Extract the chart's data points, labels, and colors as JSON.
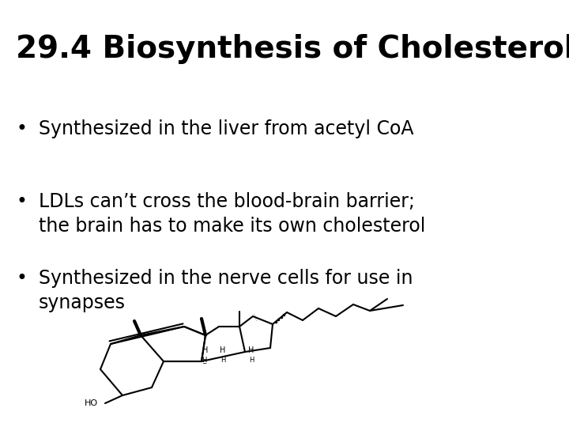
{
  "title": "29.4 Biosynthesis of Cholesterol",
  "title_fontsize": 28,
  "background_color": "#ffffff",
  "text_color": "#000000",
  "bullet_fontsize": 17,
  "bullets": [
    "Synthesized in the liver from acetyl CoA",
    "LDLs can’t cross the blood-brain barrier;\nthe brain has to make its own cholesterol",
    "Synthesized in the nerve cells for use in\nsynapses"
  ],
  "mol_lw": 1.5,
  "mol_color": "#000000"
}
